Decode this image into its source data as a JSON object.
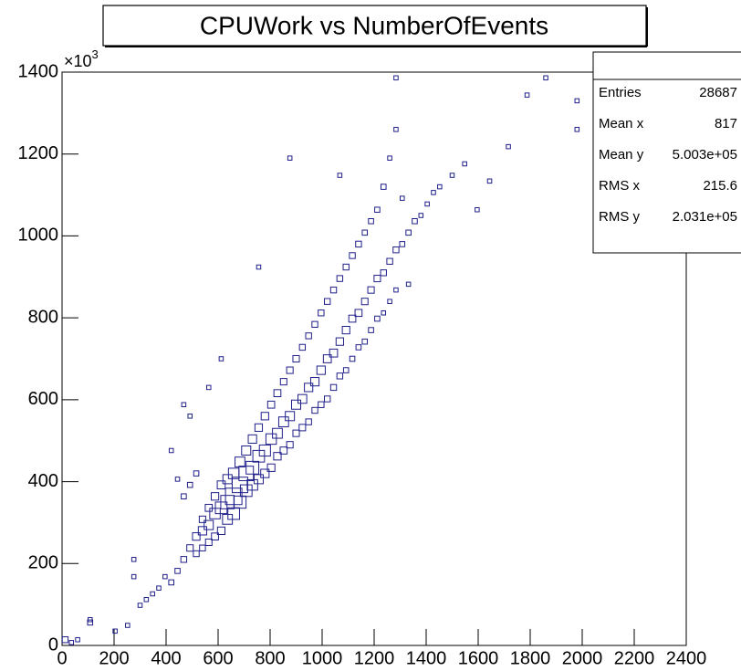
{
  "chart_data": {
    "type": "box2d",
    "title": "CPUWork vs NumberOfEvents",
    "y_multiplier": "×10",
    "y_multiplier_exponent": "3",
    "color": "#1f1f8a",
    "xlim": [
      0,
      2400
    ],
    "xticks": [
      0,
      200,
      400,
      600,
      800,
      1000,
      1200,
      1400,
      1600,
      1800,
      2000,
      2200,
      2400
    ],
    "ylim": [
      0,
      1400
    ],
    "yticks": [
      0,
      200,
      400,
      600,
      800,
      1000,
      1200,
      1400
    ],
    "stats": [
      {
        "label": "Entries",
        "value": "28687"
      },
      {
        "label": "Mean x",
        "value": "817"
      },
      {
        "label": "Mean y",
        "value": "5.003e+05"
      },
      {
        "label": "RMS x",
        "value": "215.6"
      },
      {
        "label": "RMS y",
        "value": "2.031e+05"
      }
    ],
    "x": [
      12,
      36,
      60,
      108,
      108,
      204,
      252,
      276,
      276,
      300,
      324,
      348,
      372,
      396,
      420,
      420,
      444,
      444,
      468,
      468,
      468,
      492,
      492,
      492,
      516,
      516,
      516,
      540,
      540,
      540,
      564,
      564,
      564,
      564,
      588,
      588,
      588,
      612,
      612,
      612,
      612,
      636,
      636,
      636,
      660,
      660,
      660,
      684,
      684,
      684,
      708,
      708,
      708,
      732,
      732,
      732,
      756,
      756,
      756,
      756,
      780,
      780,
      780,
      804,
      804,
      804,
      828,
      828,
      828,
      852,
      852,
      852,
      876,
      876,
      876,
      876,
      900,
      900,
      900,
      924,
      924,
      924,
      948,
      948,
      948,
      972,
      972,
      972,
      996,
      996,
      996,
      1020,
      1020,
      1020,
      1044,
      1044,
      1044,
      1068,
      1068,
      1068,
      1092,
      1092,
      1092,
      1116,
      1116,
      1116,
      1140,
      1140,
      1140,
      1164,
      1164,
      1164,
      1188,
      1188,
      1188,
      1212,
      1212,
      1212,
      1236,
      1236,
      1236,
      1260,
      1260,
      1260,
      1284,
      1284,
      1284,
      1308,
      1308,
      1332,
      1332,
      1356,
      1380,
      1404,
      1428,
      1452,
      1500,
      1548,
      1596,
      1644,
      1716,
      1788,
      1860,
      1980,
      1980,
      1284,
      1068
    ],
    "y": [
      14,
      7,
      14,
      56,
      63,
      35,
      49,
      168,
      210,
      98,
      112,
      126,
      140,
      168,
      154,
      476,
      182,
      406,
      210,
      364,
      588,
      238,
      392,
      560,
      266,
      224,
      420,
      280,
      238,
      308,
      294,
      252,
      336,
      630,
      322,
      266,
      364,
      336,
      280,
      392,
      700,
      350,
      308,
      406,
      364,
      322,
      420,
      392,
      350,
      448,
      420,
      378,
      476,
      434,
      392,
      504,
      462,
      406,
      532,
      924,
      476,
      420,
      560,
      504,
      434,
      588,
      518,
      462,
      616,
      546,
      476,
      644,
      560,
      490,
      672,
      1190,
      588,
      518,
      700,
      602,
      532,
      728,
      630,
      546,
      756,
      644,
      574,
      784,
      672,
      588,
      812,
      700,
      602,
      840,
      714,
      630,
      868,
      742,
      658,
      896,
      770,
      672,
      924,
      798,
      700,
      952,
      812,
      728,
      980,
      840,
      742,
      1008,
      868,
      770,
      1036,
      896,
      798,
      1064,
      910,
      812,
      1120,
      938,
      840,
      1190,
      966,
      868,
      1260,
      980,
      1092,
      1008,
      882,
      1036,
      1050,
      1078,
      1106,
      1120,
      1148,
      1176,
      1064,
      1134,
      1218,
      1344,
      1386,
      1330,
      1260,
      1386,
      1148
    ],
    "counts": [
      3,
      1,
      1,
      2,
      1,
      1,
      1,
      1,
      1,
      1,
      1,
      1,
      1,
      1,
      2,
      1,
      2,
      1,
      3,
      2,
      1,
      4,
      2,
      1,
      6,
      3,
      2,
      8,
      3,
      4,
      10,
      4,
      5,
      1,
      14,
      5,
      6,
      18,
      6,
      7,
      1,
      25,
      12,
      10,
      40,
      18,
      14,
      35,
      20,
      12,
      30,
      18,
      10,
      22,
      14,
      8,
      18,
      10,
      6,
      1,
      16,
      8,
      6,
      14,
      6,
      5,
      12,
      6,
      5,
      12,
      5,
      4,
      10,
      4,
      4,
      1,
      10,
      4,
      4,
      9,
      4,
      3,
      8,
      3,
      3,
      8,
      3,
      3,
      8,
      3,
      3,
      7,
      3,
      3,
      7,
      3,
      3,
      6,
      3,
      3,
      6,
      2,
      3,
      5,
      2,
      3,
      5,
      2,
      3,
      4,
      2,
      2,
      4,
      2,
      2,
      4,
      2,
      2,
      3,
      1,
      2,
      3,
      1,
      1,
      3,
      1,
      1,
      2,
      1,
      2,
      1,
      2,
      1,
      1,
      1,
      1,
      1,
      1,
      1,
      1,
      1,
      1,
      1,
      1,
      1,
      1,
      1
    ]
  }
}
